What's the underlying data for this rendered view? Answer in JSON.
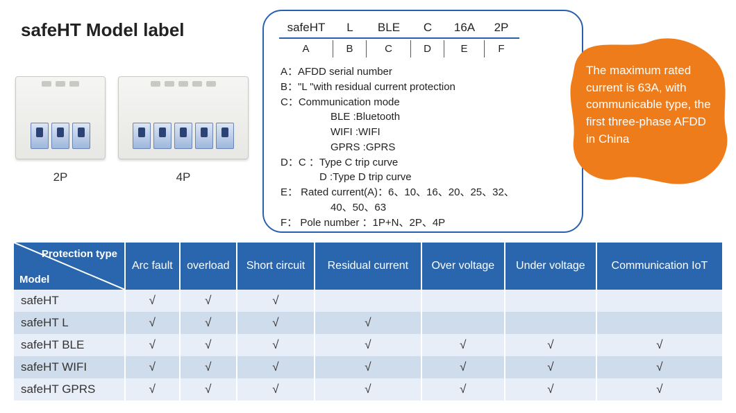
{
  "title": "safeHT  Model label",
  "products": [
    {
      "poles": 2,
      "label": "2P"
    },
    {
      "poles": 4,
      "label": "4P"
    }
  ],
  "callout": {
    "example": [
      "safeHT",
      "L",
      "BLE",
      "C",
      "16A",
      "2P"
    ],
    "letters": [
      "A",
      "B",
      "C",
      "D",
      "E",
      "F"
    ],
    "defs": {
      "A": "A：AFDD serial number",
      "B": "B：\"L \"with residual current protection",
      "C": "C：Communication mode",
      "C_sub": [
        "BLE :Bluetooth",
        "WIFI :WIFI",
        "GPRS :GPRS"
      ],
      "D": "D：C ：Type C trip curve",
      "D_sub": "D :Type D trip curve",
      "E": "E： Rated current(A)：6、10、16、20、25、32、",
      "E_sub": "40、50、63",
      "F": "F： Pole number ：1P+N、2P、4P"
    },
    "border_color": "#2a5fb0"
  },
  "badge": {
    "text": "The maximum rated current is 63A, with communicable type, the first three-phase AFDD in China",
    "fill": "#ef7c1a"
  },
  "table": {
    "header_bg": "#2a66ad",
    "row_odd_bg": "#e8eef7",
    "row_even_bg": "#cfdcec",
    "corner": {
      "top": "Protection type",
      "bottom": "Model"
    },
    "columns": [
      "Arc fault",
      "overload",
      "Short circuit",
      "Residual current",
      "Over voltage",
      "Under voltage",
      "Communication IoT"
    ],
    "check_glyph": "√",
    "rows": [
      {
        "model": "safeHT",
        "cells": [
          true,
          true,
          true,
          false,
          false,
          false,
          false
        ]
      },
      {
        "model": "safeHT L",
        "cells": [
          true,
          true,
          true,
          true,
          false,
          false,
          false
        ]
      },
      {
        "model": "safeHT BLE",
        "cells": [
          true,
          true,
          true,
          true,
          true,
          true,
          true
        ]
      },
      {
        "model": "safeHT WIFI",
        "cells": [
          true,
          true,
          true,
          true,
          true,
          true,
          true
        ]
      },
      {
        "model": "safeHT GPRS",
        "cells": [
          true,
          true,
          true,
          true,
          true,
          true,
          true
        ]
      }
    ]
  }
}
